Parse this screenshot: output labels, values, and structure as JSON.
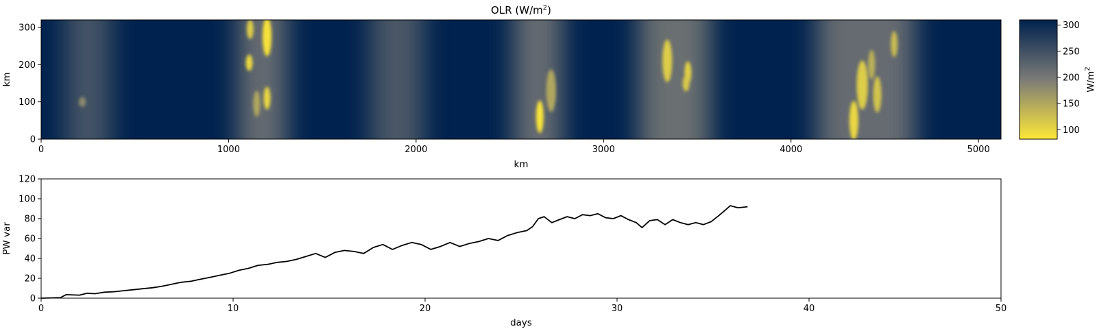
{
  "chart_data": [
    {
      "type": "heatmap",
      "title_text": "OLR (W/m",
      "title_sup": "2",
      "title_close": ")",
      "xlabel": "km",
      "ylabel": "km",
      "xlim": [
        0,
        5120
      ],
      "ylim": [
        0,
        320
      ],
      "xticks": [
        "0",
        "1000",
        "2000",
        "3000",
        "4000",
        "5000"
      ],
      "xtick_values": [
        0,
        1000,
        2000,
        3000,
        4000,
        5000
      ],
      "yticks": [
        "0",
        "100",
        "200",
        "300"
      ],
      "ytick_values": [
        0,
        100,
        200,
        300
      ],
      "colormap": "cividis_r",
      "color_low": "#fde838",
      "color_mid": "#7c7b78",
      "color_high": "#00224e",
      "colorbar": {
        "label_text": "W/m",
        "label_sup": "2",
        "range": [
          82,
          310
        ],
        "ticks": [
          "100",
          "150",
          "200",
          "250",
          "300"
        ],
        "tick_values": [
          100,
          150,
          200,
          250,
          300
        ]
      },
      "convective_bands_km": [
        {
          "center": 250,
          "width": 240,
          "olr": 235
        },
        {
          "center": 1180,
          "width": 260,
          "olr": 200
        },
        {
          "center": 1900,
          "width": 280,
          "olr": 230
        },
        {
          "center": 2650,
          "width": 260,
          "olr": 200
        },
        {
          "center": 3380,
          "width": 380,
          "olr": 195
        },
        {
          "center": 4400,
          "width": 520,
          "olr": 200
        }
      ],
      "convective_cores": [
        {
          "x": 1115,
          "y": 295,
          "r": 12,
          "olr": 110
        },
        {
          "x": 1205,
          "y": 275,
          "r": 24,
          "olr": 88
        },
        {
          "x": 1110,
          "y": 205,
          "r": 10,
          "olr": 100
        },
        {
          "x": 1205,
          "y": 110,
          "r": 14,
          "olr": 100
        },
        {
          "x": 1150,
          "y": 95,
          "r": 16,
          "olr": 150
        },
        {
          "x": 2660,
          "y": 60,
          "r": 20,
          "olr": 85
        },
        {
          "x": 2720,
          "y": 130,
          "r": 26,
          "olr": 150
        },
        {
          "x": 3340,
          "y": 210,
          "r": 26,
          "olr": 110
        },
        {
          "x": 3450,
          "y": 178,
          "r": 14,
          "olr": 105
        },
        {
          "x": 3440,
          "y": 150,
          "r": 10,
          "olr": 115
        },
        {
          "x": 4380,
          "y": 145,
          "r": 30,
          "olr": 110
        },
        {
          "x": 4460,
          "y": 120,
          "r": 22,
          "olr": 120
        },
        {
          "x": 4335,
          "y": 50,
          "r": 24,
          "olr": 100
        },
        {
          "x": 4550,
          "y": 255,
          "r": 16,
          "olr": 130
        },
        {
          "x": 4430,
          "y": 200,
          "r": 18,
          "olr": 140
        },
        {
          "x": 220,
          "y": 100,
          "r": 6,
          "olr": 180
        }
      ]
    },
    {
      "type": "line",
      "xlabel": "days",
      "ylabel": "PW var",
      "xlim": [
        0,
        50
      ],
      "ylim": [
        0,
        120
      ],
      "xticks": [
        "0",
        "10",
        "20",
        "30",
        "40",
        "50"
      ],
      "xtick_values": [
        0,
        10,
        20,
        30,
        40,
        50
      ],
      "yticks": [
        "0",
        "20",
        "40",
        "60",
        "80",
        "100",
        "120"
      ],
      "ytick_values": [
        0,
        20,
        40,
        60,
        80,
        100,
        120
      ],
      "line_color": "#000000",
      "x": [
        0,
        1,
        1.3,
        2,
        2.4,
        2.8,
        3.3,
        3.8,
        4.3,
        4.8,
        5.3,
        5.8,
        6.3,
        6.8,
        7.3,
        7.8,
        8.3,
        8.8,
        9.3,
        9.8,
        10.3,
        10.8,
        11.3,
        11.8,
        12.3,
        12.8,
        13.3,
        13.8,
        14.3,
        14.8,
        15.3,
        15.8,
        16.3,
        16.8,
        17.3,
        17.8,
        18.3,
        18.8,
        19.3,
        19.8,
        20.3,
        20.8,
        21.3,
        21.8,
        22.3,
        22.8,
        23.3,
        23.8,
        24.3,
        24.8,
        25.3,
        25.6,
        25.9,
        26.2,
        26.6,
        27,
        27.4,
        27.8,
        28.2,
        28.6,
        29,
        29.4,
        29.8,
        30.2,
        30.6,
        31,
        31.3,
        31.7,
        32.1,
        32.5,
        32.9,
        33.3,
        33.7,
        34.1,
        34.5,
        34.9,
        35.3,
        35.6,
        35.9,
        36.3,
        36.8
      ],
      "y": [
        0,
        0.5,
        3.5,
        3,
        5,
        4.5,
        6,
        6.5,
        7.5,
        8.5,
        9.5,
        10.5,
        12,
        14,
        16,
        17,
        19,
        21,
        23,
        25,
        28,
        30,
        33,
        34,
        36,
        37,
        39,
        42,
        45,
        41,
        46,
        48,
        47,
        45,
        51,
        54,
        49,
        53,
        56,
        54,
        49,
        52,
        56,
        52,
        55,
        57,
        60,
        58,
        63,
        66,
        68,
        72,
        80,
        82,
        76,
        79,
        82,
        80,
        84,
        83,
        85,
        81,
        80,
        83,
        79,
        76,
        71,
        78,
        79,
        74,
        79,
        76,
        74,
        76,
        74,
        77,
        83,
        88,
        93,
        91,
        92
      ]
    }
  ]
}
